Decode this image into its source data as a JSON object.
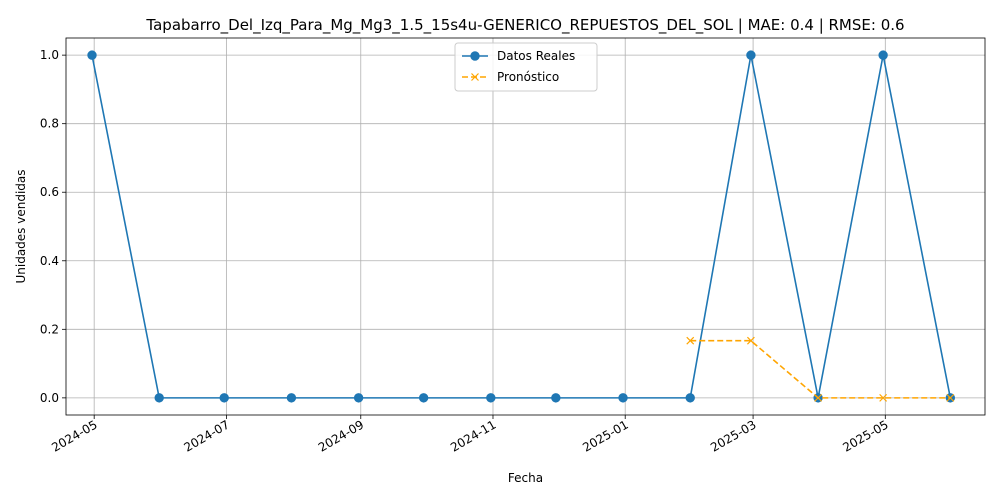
{
  "chart_data": {
    "type": "line",
    "title": "Tapabarro_Del_Izq_Para_Mg_Mg3_1.5_15s4u-GENERICO_REPUESTOS_DEL_SOL | MAE: 0.4 | RMSE: 0.6",
    "xlabel": "Fecha",
    "ylabel": "Unidades vendidas",
    "x_type": "date",
    "xlim": [
      "2024-04-18",
      "2025-06-16"
    ],
    "ylim": [
      -0.05,
      1.05
    ],
    "x_ticks": [
      {
        "date": "2024-05-01",
        "label": "2024-05"
      },
      {
        "date": "2024-07-01",
        "label": "2024-07"
      },
      {
        "date": "2024-09-01",
        "label": "2024-09"
      },
      {
        "date": "2024-11-01",
        "label": "2024-11"
      },
      {
        "date": "2025-01-01",
        "label": "2025-01"
      },
      {
        "date": "2025-03-01",
        "label": "2025-03"
      },
      {
        "date": "2025-05-01",
        "label": "2025-05"
      }
    ],
    "y_ticks": [
      {
        "value": 0.0,
        "label": "0.0"
      },
      {
        "value": 0.2,
        "label": "0.2"
      },
      {
        "value": 0.4,
        "label": "0.4"
      },
      {
        "value": 0.6,
        "label": "0.6"
      },
      {
        "value": 0.8,
        "label": "0.8"
      },
      {
        "value": 1.0,
        "label": "1.0"
      }
    ],
    "grid": true,
    "legend_position": "top-center",
    "series": [
      {
        "name": "Datos Reales",
        "color": "#1f77b4",
        "line_style": "solid",
        "marker": "circle",
        "points": [
          {
            "x": "2024-04-30",
            "y": 1
          },
          {
            "x": "2024-05-31",
            "y": 0
          },
          {
            "x": "2024-06-30",
            "y": 0
          },
          {
            "x": "2024-07-31",
            "y": 0
          },
          {
            "x": "2024-08-31",
            "y": 0
          },
          {
            "x": "2024-09-30",
            "y": 0
          },
          {
            "x": "2024-10-31",
            "y": 0
          },
          {
            "x": "2024-11-30",
            "y": 0
          },
          {
            "x": "2024-12-31",
            "y": 0
          },
          {
            "x": "2025-01-31",
            "y": 0
          },
          {
            "x": "2025-02-28",
            "y": 1
          },
          {
            "x": "2025-03-31",
            "y": 0
          },
          {
            "x": "2025-04-30",
            "y": 1
          },
          {
            "x": "2025-05-31",
            "y": 0
          }
        ]
      },
      {
        "name": "Pronóstico",
        "color": "#ffa500",
        "line_style": "dashed",
        "marker": "x",
        "points": [
          {
            "x": "2025-01-31",
            "y": 0.1667
          },
          {
            "x": "2025-02-28",
            "y": 0.1667
          },
          {
            "x": "2025-03-31",
            "y": 0.0
          },
          {
            "x": "2025-04-30",
            "y": 0.0
          },
          {
            "x": "2025-05-31",
            "y": 0.0
          }
        ]
      }
    ]
  }
}
